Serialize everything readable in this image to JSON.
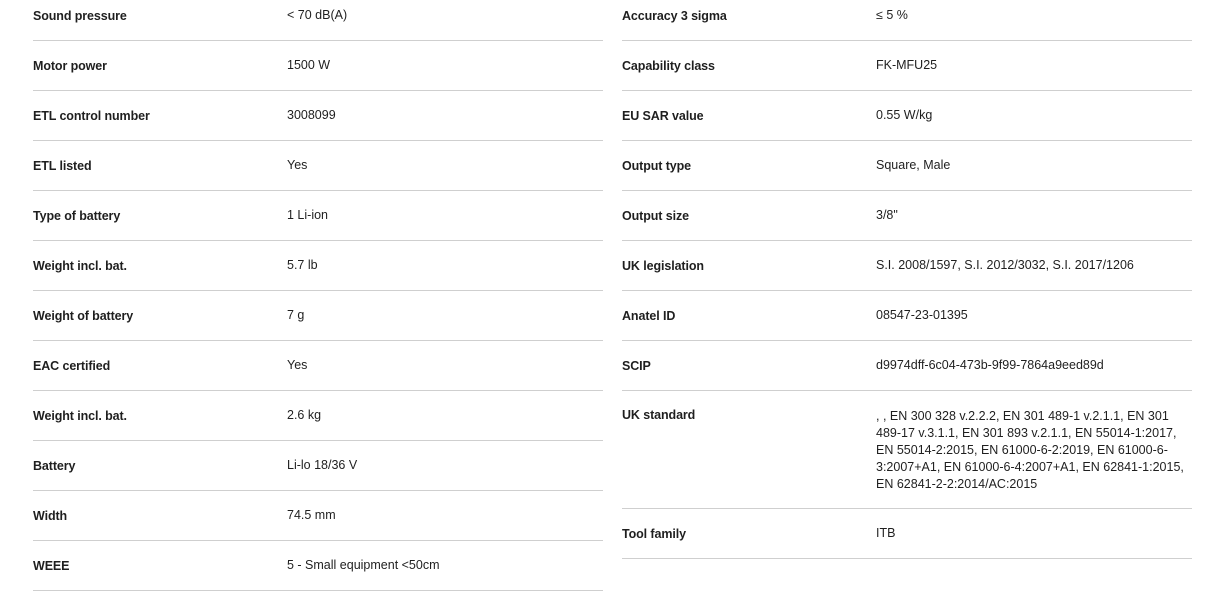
{
  "left_specs": [
    {
      "label": "Sound pressure",
      "value": "< 70 dB(A)"
    },
    {
      "label": "Motor power",
      "value": "1500 W"
    },
    {
      "label": "ETL control number",
      "value": "3008099"
    },
    {
      "label": "ETL listed",
      "value": "Yes"
    },
    {
      "label": "Type of battery",
      "value": "1 Li-ion"
    },
    {
      "label": "Weight incl. bat.",
      "value": "5.7 lb"
    },
    {
      "label": "Weight of battery",
      "value": "7 g"
    },
    {
      "label": "EAC certified",
      "value": "Yes"
    },
    {
      "label": "Weight incl. bat.",
      "value": "2.6 kg"
    },
    {
      "label": "Battery",
      "value": "Li-lo 18/36 V"
    },
    {
      "label": "Width",
      "value": "74.5 mm"
    },
    {
      "label": "WEEE",
      "value": "5 - Small equipment <50cm"
    }
  ],
  "right_specs": [
    {
      "label": "Accuracy 3 sigma",
      "value": "≤ 5 %"
    },
    {
      "label": "Capability class",
      "value": "FK-MFU25"
    },
    {
      "label": "EU SAR value",
      "value": "0.55 W/kg"
    },
    {
      "label": "Output type",
      "value": "Square, Male"
    },
    {
      "label": "Output size",
      "value": "3/8\""
    },
    {
      "label": "UK legislation",
      "value": "S.I. 2008/1597, S.I. 2012/3032, S.I. 2017/1206"
    },
    {
      "label": "Anatel ID",
      "value": "08547-23-01395"
    },
    {
      "label": "SCIP",
      "value": "d9974dff-6c04-473b-9f99-7864a9eed89d"
    },
    {
      "label": "UK standard",
      "value": ", , EN 300 328 v.2.2.2, EN 301 489-1 v.2.1.1, EN 301 489-17 v.3.1.1, EN 301 893 v.2.1.1, EN 55014-1:2017, EN 55014-2:2015, EN 61000-6-2:2019, EN 61000-6-3:2007+A1, EN 61000-6-4:2007+A1, EN 62841-1:2015, EN 62841-2-2:2014/AC:2015"
    },
    {
      "label": "Tool family",
      "value": "ITB"
    }
  ]
}
